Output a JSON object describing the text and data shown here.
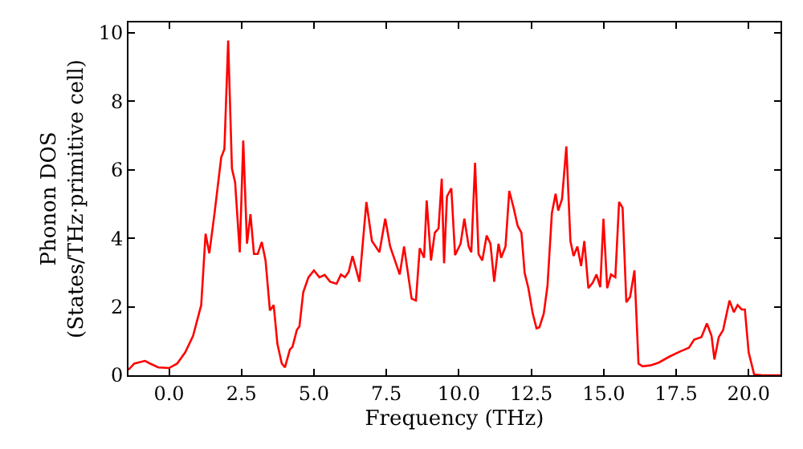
{
  "chart_data": {
    "type": "line",
    "xlabel": "Frequency (THz)",
    "ylabel": "Phonon DOS\n(States/THz·primitive cell)",
    "xlim": [
      -1.4,
      21.1
    ],
    "ylim": [
      0,
      10.3
    ],
    "xticks": [
      {
        "value": 0,
        "label": "0.0"
      },
      {
        "value": 2.5,
        "label": "2.5"
      },
      {
        "value": 5,
        "label": "5.0"
      },
      {
        "value": 7.5,
        "label": "7.5"
      },
      {
        "value": 10,
        "label": "10.0"
      },
      {
        "value": 12.5,
        "label": "12.5"
      },
      {
        "value": 15,
        "label": "15.0"
      },
      {
        "value": 17.5,
        "label": "17.5"
      },
      {
        "value": 20,
        "label": "20.0"
      }
    ],
    "yticks": [
      0,
      2,
      4,
      6,
      8,
      10
    ],
    "grid": false,
    "marker": "none",
    "line_style": "solid",
    "series": [
      {
        "color": "#ff0000",
        "x": [
          -1.4,
          -1.2,
          -0.83,
          -0.65,
          -0.37,
          0,
          0.28,
          0.56,
          0.83,
          1.11,
          1.26,
          1.39,
          1.57,
          1.8,
          1.91,
          2.04,
          2.17,
          2.28,
          2.44,
          2.56,
          2.69,
          2.81,
          2.93,
          3.06,
          3.2,
          3.33,
          3.48,
          3.61,
          3.74,
          3.89,
          4.0,
          4.17,
          4.26,
          4.41,
          4.5,
          4.63,
          4.81,
          5.0,
          5.19,
          5.37,
          5.56,
          5.78,
          5.93,
          6.07,
          6.2,
          6.33,
          6.57,
          6.81,
          7.0,
          7.26,
          7.46,
          7.63,
          7.96,
          8.11,
          8.37,
          8.52,
          8.65,
          8.8,
          8.89,
          9.04,
          9.17,
          9.3,
          9.41,
          9.49,
          9.59,
          9.74,
          9.87,
          10.06,
          10.19,
          10.34,
          10.43,
          10.56,
          10.68,
          10.81,
          10.96,
          11.09,
          11.22,
          11.37,
          11.46,
          11.61,
          11.74,
          11.89,
          12.03,
          12.16,
          12.27,
          12.4,
          12.55,
          12.68,
          12.78,
          12.93,
          13.06,
          13.21,
          13.34,
          13.43,
          13.56,
          13.71,
          13.85,
          13.96,
          14.09,
          14.22,
          14.33,
          14.47,
          14.62,
          14.75,
          14.88,
          14.99,
          15.12,
          15.25,
          15.4,
          15.53,
          15.65,
          15.78,
          15.91,
          16.06,
          16.2,
          16.34,
          16.62,
          16.9,
          17.28,
          17.65,
          17.94,
          18.12,
          18.37,
          18.56,
          18.72,
          18.82,
          18.97,
          19.12,
          19.34,
          19.49,
          19.62,
          19.76,
          19.87,
          20.0,
          20.19,
          20.47,
          21.1
        ],
        "values": [
          0.16,
          0.34,
          0.42,
          0.34,
          0.23,
          0.21,
          0.34,
          0.67,
          1.15,
          2.05,
          4.13,
          3.56,
          4.73,
          6.36,
          6.6,
          9.77,
          6.03,
          5.63,
          3.59,
          6.85,
          3.84,
          4.7,
          3.54,
          3.54,
          3.89,
          3.35,
          1.89,
          2.05,
          0.91,
          0.34,
          0.23,
          0.75,
          0.83,
          1.32,
          1.43,
          2.42,
          2.86,
          3.06,
          2.86,
          2.93,
          2.73,
          2.67,
          2.94,
          2.86,
          3.02,
          3.48,
          2.73,
          5.06,
          3.92,
          3.59,
          4.57,
          3.76,
          2.94,
          3.76,
          2.24,
          2.18,
          3.71,
          3.43,
          5.1,
          3.35,
          4.16,
          4.29,
          5.74,
          3.27,
          5.22,
          5.46,
          3.51,
          3.84,
          4.57,
          3.76,
          3.59,
          6.2,
          3.54,
          3.35,
          4.08,
          3.84,
          2.73,
          3.84,
          3.43,
          3.76,
          5.38,
          4.89,
          4.36,
          4.16,
          2.99,
          2.54,
          1.8,
          1.37,
          1.4,
          1.8,
          2.62,
          4.73,
          5.3,
          4.81,
          5.14,
          6.68,
          3.92,
          3.48,
          3.76,
          3.19,
          3.92,
          2.54,
          2.7,
          2.94,
          2.57,
          4.57,
          2.54,
          2.94,
          2.86,
          5.06,
          4.89,
          2.13,
          2.29,
          3.06,
          0.34,
          0.26,
          0.29,
          0.37,
          0.55,
          0.7,
          0.8,
          1.04,
          1.11,
          1.51,
          1.15,
          0.46,
          1.11,
          1.32,
          2.18,
          1.84,
          2.05,
          1.92,
          1.92,
          0.67,
          0.02,
          0,
          0
        ]
      }
    ]
  }
}
